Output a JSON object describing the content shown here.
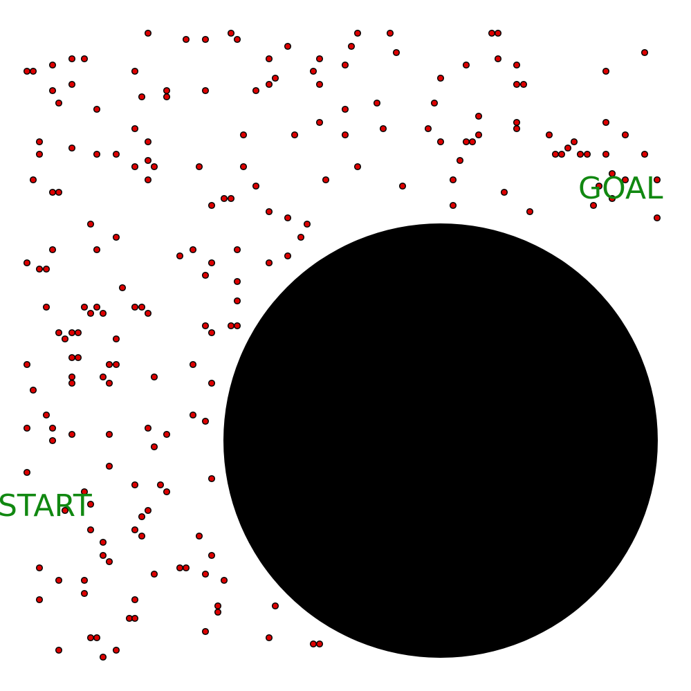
{
  "labels": {
    "start": "START",
    "goal": "GOAL"
  },
  "colors": {
    "background": "#ffffff",
    "obstacle": "#000000",
    "sample_fill": "#dd0000",
    "sample_stroke": "#000000",
    "label": "#118811"
  }
}
